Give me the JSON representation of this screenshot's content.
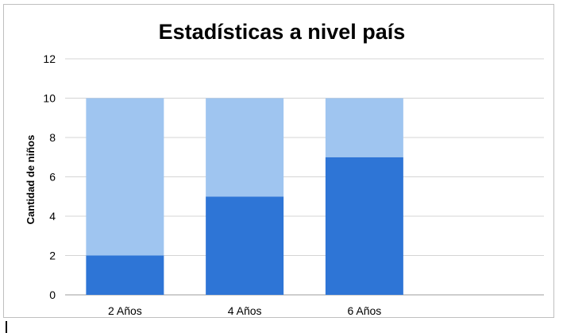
{
  "chart_data": {
    "type": "bar",
    "stacked": true,
    "title": "Estadísticas a nivel país",
    "xlabel": "",
    "ylabel": "Cantidad de niños",
    "categories": [
      "2 Años",
      "4 Años",
      "6 Años"
    ],
    "series": [
      {
        "values": [
          2,
          5,
          7
        ],
        "color": "#2e75d6"
      },
      {
        "values": [
          8,
          5,
          3
        ],
        "color": "#9fc5f0"
      }
    ],
    "ylim": [
      0,
      12
    ],
    "yticks": [
      "0",
      "2",
      "4",
      "6",
      "8",
      "10",
      "12"
    ],
    "grid": true,
    "legend": "none"
  }
}
